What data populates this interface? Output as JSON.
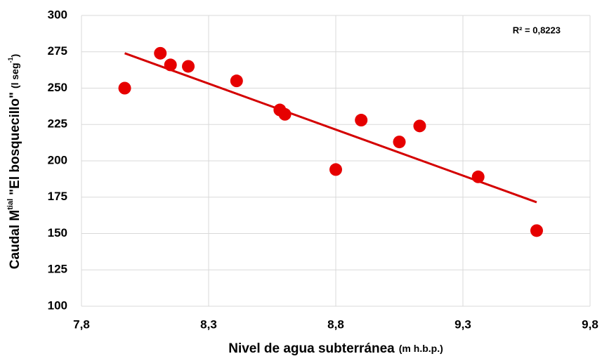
{
  "chart_data": {
    "type": "scatter",
    "x_label": {
      "main": "Nivel de agua subterránea",
      "unit": "(m h.b.p.)"
    },
    "y_label": {
      "main": "Caudal M",
      "main_sup": "tial",
      "name": "\"El bosquecillo\"",
      "unit": "(l seg",
      "unit_sup": "-1",
      "unit_end": ")"
    },
    "annotation": "R² = 0,8223",
    "color": "#e60000",
    "x": [
      7.97,
      8.11,
      8.15,
      8.22,
      8.41,
      8.58,
      8.6,
      8.8,
      8.9,
      9.05,
      9.13,
      9.36,
      9.59
    ],
    "values": [
      250,
      274,
      266,
      265,
      255,
      235,
      232,
      194,
      228,
      213,
      224,
      189,
      152
    ],
    "trendline": {
      "color": "#d40000",
      "x": [
        7.97,
        9.59
      ],
      "y": [
        274,
        171.5
      ]
    },
    "xlim": [
      7.8,
      9.8
    ],
    "xticks": [
      {
        "value": 7.8,
        "label": "7,8"
      },
      {
        "value": 8.3,
        "label": "8,3"
      },
      {
        "value": 8.8,
        "label": "8,8"
      },
      {
        "value": 9.3,
        "label": "9,3"
      },
      {
        "value": 9.8,
        "label": "9,8"
      }
    ],
    "ylim": [
      100,
      300
    ],
    "yticks": [
      100,
      125,
      150,
      175,
      200,
      225,
      250,
      275,
      300
    ],
    "grid": true
  }
}
